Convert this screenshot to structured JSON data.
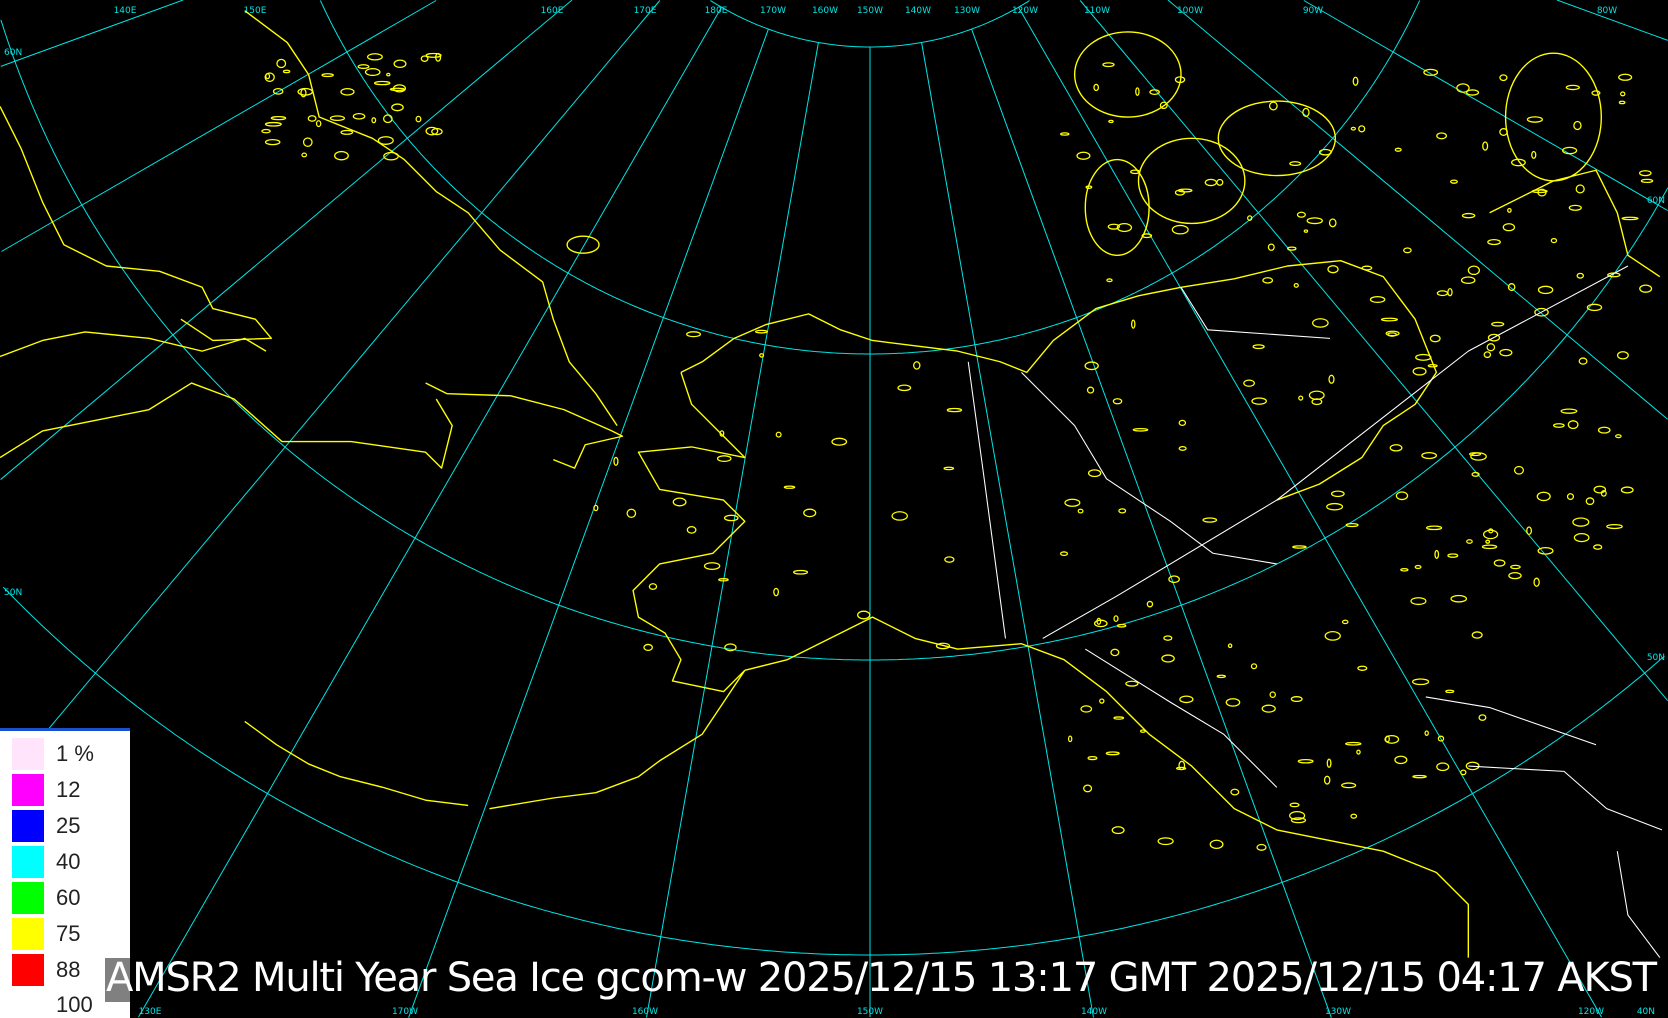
{
  "title": "AMSR2 Multi Year Sea Ice gcom-w 2025/12/15 13:17 GMT 2025/12/15 04:17 AKST",
  "colors": {
    "background": "#000000",
    "graticule": "#00e5e5",
    "coastline": "#ffff00",
    "boundaries": "#ffffff"
  },
  "legend": {
    "items": [
      {
        "label": "1 %",
        "color": "#ffe4fc"
      },
      {
        "label": "12",
        "color": "#ff00ff"
      },
      {
        "label": "25",
        "color": "#0000ff"
      },
      {
        "label": "40",
        "color": "#00ffff"
      },
      {
        "label": "60",
        "color": "#00ff00"
      },
      {
        "label": "75",
        "color": "#ffff00"
      },
      {
        "label": "88",
        "color": "#ff0000"
      }
    ],
    "max_label": "100"
  },
  "graticule": {
    "top_labels": [
      "140E",
      "150E",
      "160E",
      "170E",
      "180E",
      "170W",
      "160W",
      "150W",
      "140W",
      "130W",
      "120W",
      "110W",
      "100W",
      "90W",
      "80W"
    ],
    "bottom_labels": [
      "130E",
      "170W",
      "160W",
      "150W",
      "140W",
      "130W",
      "120W",
      "40N"
    ],
    "left_labels": [
      "60N",
      "50N"
    ],
    "right_labels": [
      "60N",
      "50N"
    ]
  }
}
